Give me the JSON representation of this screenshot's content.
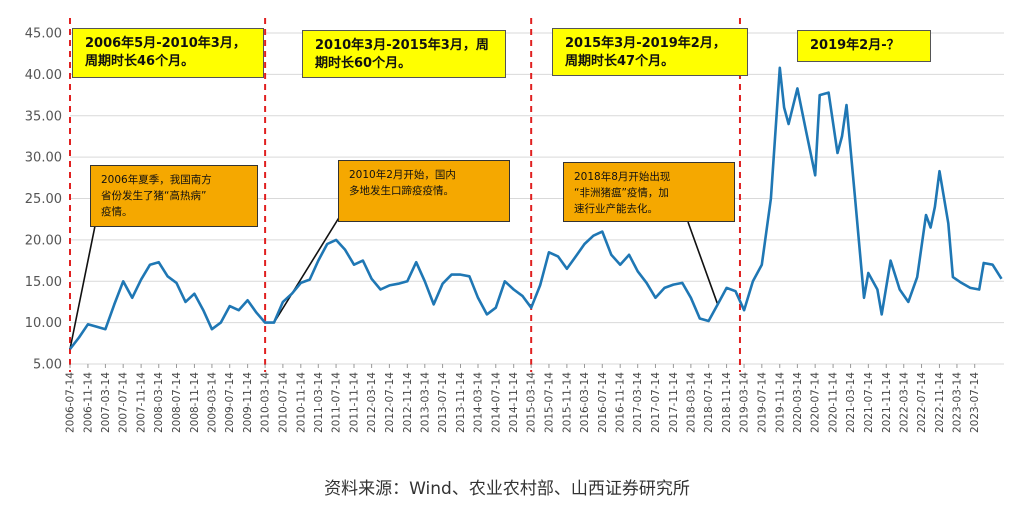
{
  "chart_data": {
    "type": "line",
    "title": "",
    "xlabel": "",
    "ylabel": "",
    "ylim": [
      5,
      45
    ],
    "yticks": [
      "5.00",
      "10.00",
      "15.00",
      "20.00",
      "25.00",
      "30.00",
      "35.00",
      "40.00",
      "45.00"
    ],
    "grid": "horizontal",
    "line_color": "#1f77b4",
    "divider_color": "#e02020",
    "x_tick_labels": [
      "2006-07-14",
      "2006-11-14",
      "2007-03-14",
      "2007-07-14",
      "2007-11-14",
      "2008-03-14",
      "2008-07-14",
      "2008-11-14",
      "2009-03-14",
      "2009-07-14",
      "2009-11-14",
      "2010-03-14",
      "2010-07-14",
      "2010-11-14",
      "2011-03-14",
      "2011-07-14",
      "2011-11-14",
      "2012-03-14",
      "2012-07-14",
      "2012-11-14",
      "2013-03-14",
      "2013-07-14",
      "2013-11-14",
      "2014-03-14",
      "2014-07-14",
      "2014-11-14",
      "2015-03-14",
      "2015-07-14",
      "2015-11-14",
      "2016-03-14",
      "2016-07-14",
      "2016-11-14",
      "2017-03-14",
      "2017-07-14",
      "2017-11-14",
      "2018-03-14",
      "2018-07-14",
      "2018-11-14",
      "2019-03-14",
      "2019-07-14",
      "2019-11-14",
      "2020-03-14",
      "2020-07-14",
      "2020-11-14",
      "2021-03-14",
      "2021-07-14",
      "2021-11-14",
      "2022-03-14",
      "2022-07-14",
      "2022-11-14",
      "2023-03-14",
      "2023-07-14"
    ],
    "x_range": [
      "2006-07-14",
      "2024-01-31"
    ],
    "dividers": [
      "2006-07-14",
      "2010-03-14",
      "2015-03-14",
      "2019-02-14"
    ],
    "series": [
      {
        "points": [
          [
            "2006-07-14",
            6.8
          ],
          [
            "2006-09-14",
            8.2
          ],
          [
            "2006-11-14",
            9.8
          ],
          [
            "2007-01-14",
            9.5
          ],
          [
            "2007-03-14",
            9.2
          ],
          [
            "2007-05-14",
            12.2
          ],
          [
            "2007-07-14",
            15.0
          ],
          [
            "2007-09-14",
            13.0
          ],
          [
            "2007-11-14",
            15.2
          ],
          [
            "2008-01-14",
            17.0
          ],
          [
            "2008-03-14",
            17.3
          ],
          [
            "2008-05-14",
            15.6
          ],
          [
            "2008-07-14",
            14.8
          ],
          [
            "2008-09-14",
            12.5
          ],
          [
            "2008-11-14",
            13.5
          ],
          [
            "2009-01-14",
            11.5
          ],
          [
            "2009-03-14",
            9.2
          ],
          [
            "2009-05-14",
            10.0
          ],
          [
            "2009-07-14",
            12.0
          ],
          [
            "2009-09-14",
            11.5
          ],
          [
            "2009-11-14",
            12.7
          ],
          [
            "2010-01-14",
            11.2
          ],
          [
            "2010-03-14",
            10.0
          ],
          [
            "2010-05-14",
            10.0
          ],
          [
            "2010-07-14",
            12.5
          ],
          [
            "2010-09-14",
            13.5
          ],
          [
            "2010-11-14",
            14.8
          ],
          [
            "2011-01-14",
            15.2
          ],
          [
            "2011-03-14",
            17.5
          ],
          [
            "2011-05-14",
            19.5
          ],
          [
            "2011-07-14",
            20.0
          ],
          [
            "2011-09-14",
            18.8
          ],
          [
            "2011-11-14",
            17.0
          ],
          [
            "2012-01-14",
            17.5
          ],
          [
            "2012-03-14",
            15.3
          ],
          [
            "2012-05-14",
            14.0
          ],
          [
            "2012-07-14",
            14.5
          ],
          [
            "2012-09-14",
            14.7
          ],
          [
            "2012-11-14",
            15.0
          ],
          [
            "2013-01-14",
            17.3
          ],
          [
            "2013-03-14",
            15.0
          ],
          [
            "2013-05-14",
            12.2
          ],
          [
            "2013-07-14",
            14.7
          ],
          [
            "2013-09-14",
            15.8
          ],
          [
            "2013-11-14",
            15.8
          ],
          [
            "2014-01-14",
            15.6
          ],
          [
            "2014-03-14",
            13.0
          ],
          [
            "2014-05-14",
            11.0
          ],
          [
            "2014-07-14",
            11.8
          ],
          [
            "2014-09-14",
            15.0
          ],
          [
            "2014-11-14",
            14.0
          ],
          [
            "2015-01-14",
            13.2
          ],
          [
            "2015-03-14",
            11.8
          ],
          [
            "2015-05-14",
            14.5
          ],
          [
            "2015-07-14",
            18.5
          ],
          [
            "2015-09-14",
            18.0
          ],
          [
            "2015-11-14",
            16.5
          ],
          [
            "2016-01-14",
            18.0
          ],
          [
            "2016-03-14",
            19.5
          ],
          [
            "2016-05-14",
            20.5
          ],
          [
            "2016-07-14",
            21.0
          ],
          [
            "2016-09-14",
            18.2
          ],
          [
            "2016-11-14",
            17.0
          ],
          [
            "2017-01-14",
            18.2
          ],
          [
            "2017-03-14",
            16.2
          ],
          [
            "2017-05-14",
            14.8
          ],
          [
            "2017-07-14",
            13.0
          ],
          [
            "2017-09-14",
            14.2
          ],
          [
            "2017-11-14",
            14.6
          ],
          [
            "2018-01-14",
            14.8
          ],
          [
            "2018-03-14",
            13.0
          ],
          [
            "2018-05-14",
            10.5
          ],
          [
            "2018-07-14",
            10.2
          ],
          [
            "2018-09-14",
            12.2
          ],
          [
            "2018-11-14",
            14.2
          ],
          [
            "2019-01-14",
            13.8
          ],
          [
            "2019-03-14",
            11.5
          ],
          [
            "2019-05-14",
            15.0
          ],
          [
            "2019-07-14",
            17.0
          ],
          [
            "2019-09-14",
            25.0
          ],
          [
            "2019-11-14",
            40.8
          ],
          [
            "2019-12-14",
            36.0
          ],
          [
            "2020-01-14",
            34.0
          ],
          [
            "2020-03-14",
            38.3
          ],
          [
            "2020-05-14",
            33.0
          ],
          [
            "2020-07-14",
            27.8
          ],
          [
            "2020-08-14",
            37.5
          ],
          [
            "2020-10-14",
            37.8
          ],
          [
            "2020-12-14",
            30.5
          ],
          [
            "2021-01-14",
            32.5
          ],
          [
            "2021-02-14",
            36.3
          ],
          [
            "2021-04-14",
            25.0
          ],
          [
            "2021-06-14",
            13.0
          ],
          [
            "2021-07-14",
            16.0
          ],
          [
            "2021-09-14",
            14.0
          ],
          [
            "2021-10-14",
            11.0
          ],
          [
            "2021-12-14",
            17.5
          ],
          [
            "2022-02-14",
            14.0
          ],
          [
            "2022-04-14",
            12.5
          ],
          [
            "2022-06-14",
            15.5
          ],
          [
            "2022-08-14",
            23.0
          ],
          [
            "2022-09-14",
            21.5
          ],
          [
            "2022-10-14",
            24.0
          ],
          [
            "2022-11-14",
            28.3
          ],
          [
            "2023-01-14",
            22.0
          ],
          [
            "2023-02-14",
            15.5
          ],
          [
            "2023-04-14",
            14.8
          ],
          [
            "2023-06-14",
            14.2
          ],
          [
            "2023-08-14",
            14.0
          ],
          [
            "2023-09-14",
            17.2
          ],
          [
            "2023-11-14",
            17.0
          ],
          [
            "2024-01-14",
            15.3
          ]
        ]
      }
    ],
    "annotations": {
      "periods": [
        {
          "lines": [
            "2006年5月-2010年3月，",
            "周期时长46个月。"
          ]
        },
        {
          "lines": [
            "2010年3月-2015年3月，周",
            "期时长60个月。"
          ]
        },
        {
          "lines": [
            "2015年3月-2019年2月，",
            "周期时长47个月。"
          ]
        },
        {
          "lines": [
            "2019年2月-？"
          ]
        }
      ],
      "events": [
        {
          "lines": [
            "2006年夏季，我国南方",
            "省份发生了猪“高热病”",
            "疫情。"
          ]
        },
        {
          "lines": [
            "2010年2月开始，国内",
            "多地发生口蹄疫疫情。"
          ]
        },
        {
          "lines": [
            "2018年8月开始出现",
            "“非洲猪瘟”疫情，加",
            "速行业产能去化。"
          ]
        }
      ]
    },
    "source": "资料来源：Wind、农业农村部、山西证券研究所"
  },
  "colors": {
    "period_box": "#ffff00",
    "event_box": "#f5a800"
  }
}
